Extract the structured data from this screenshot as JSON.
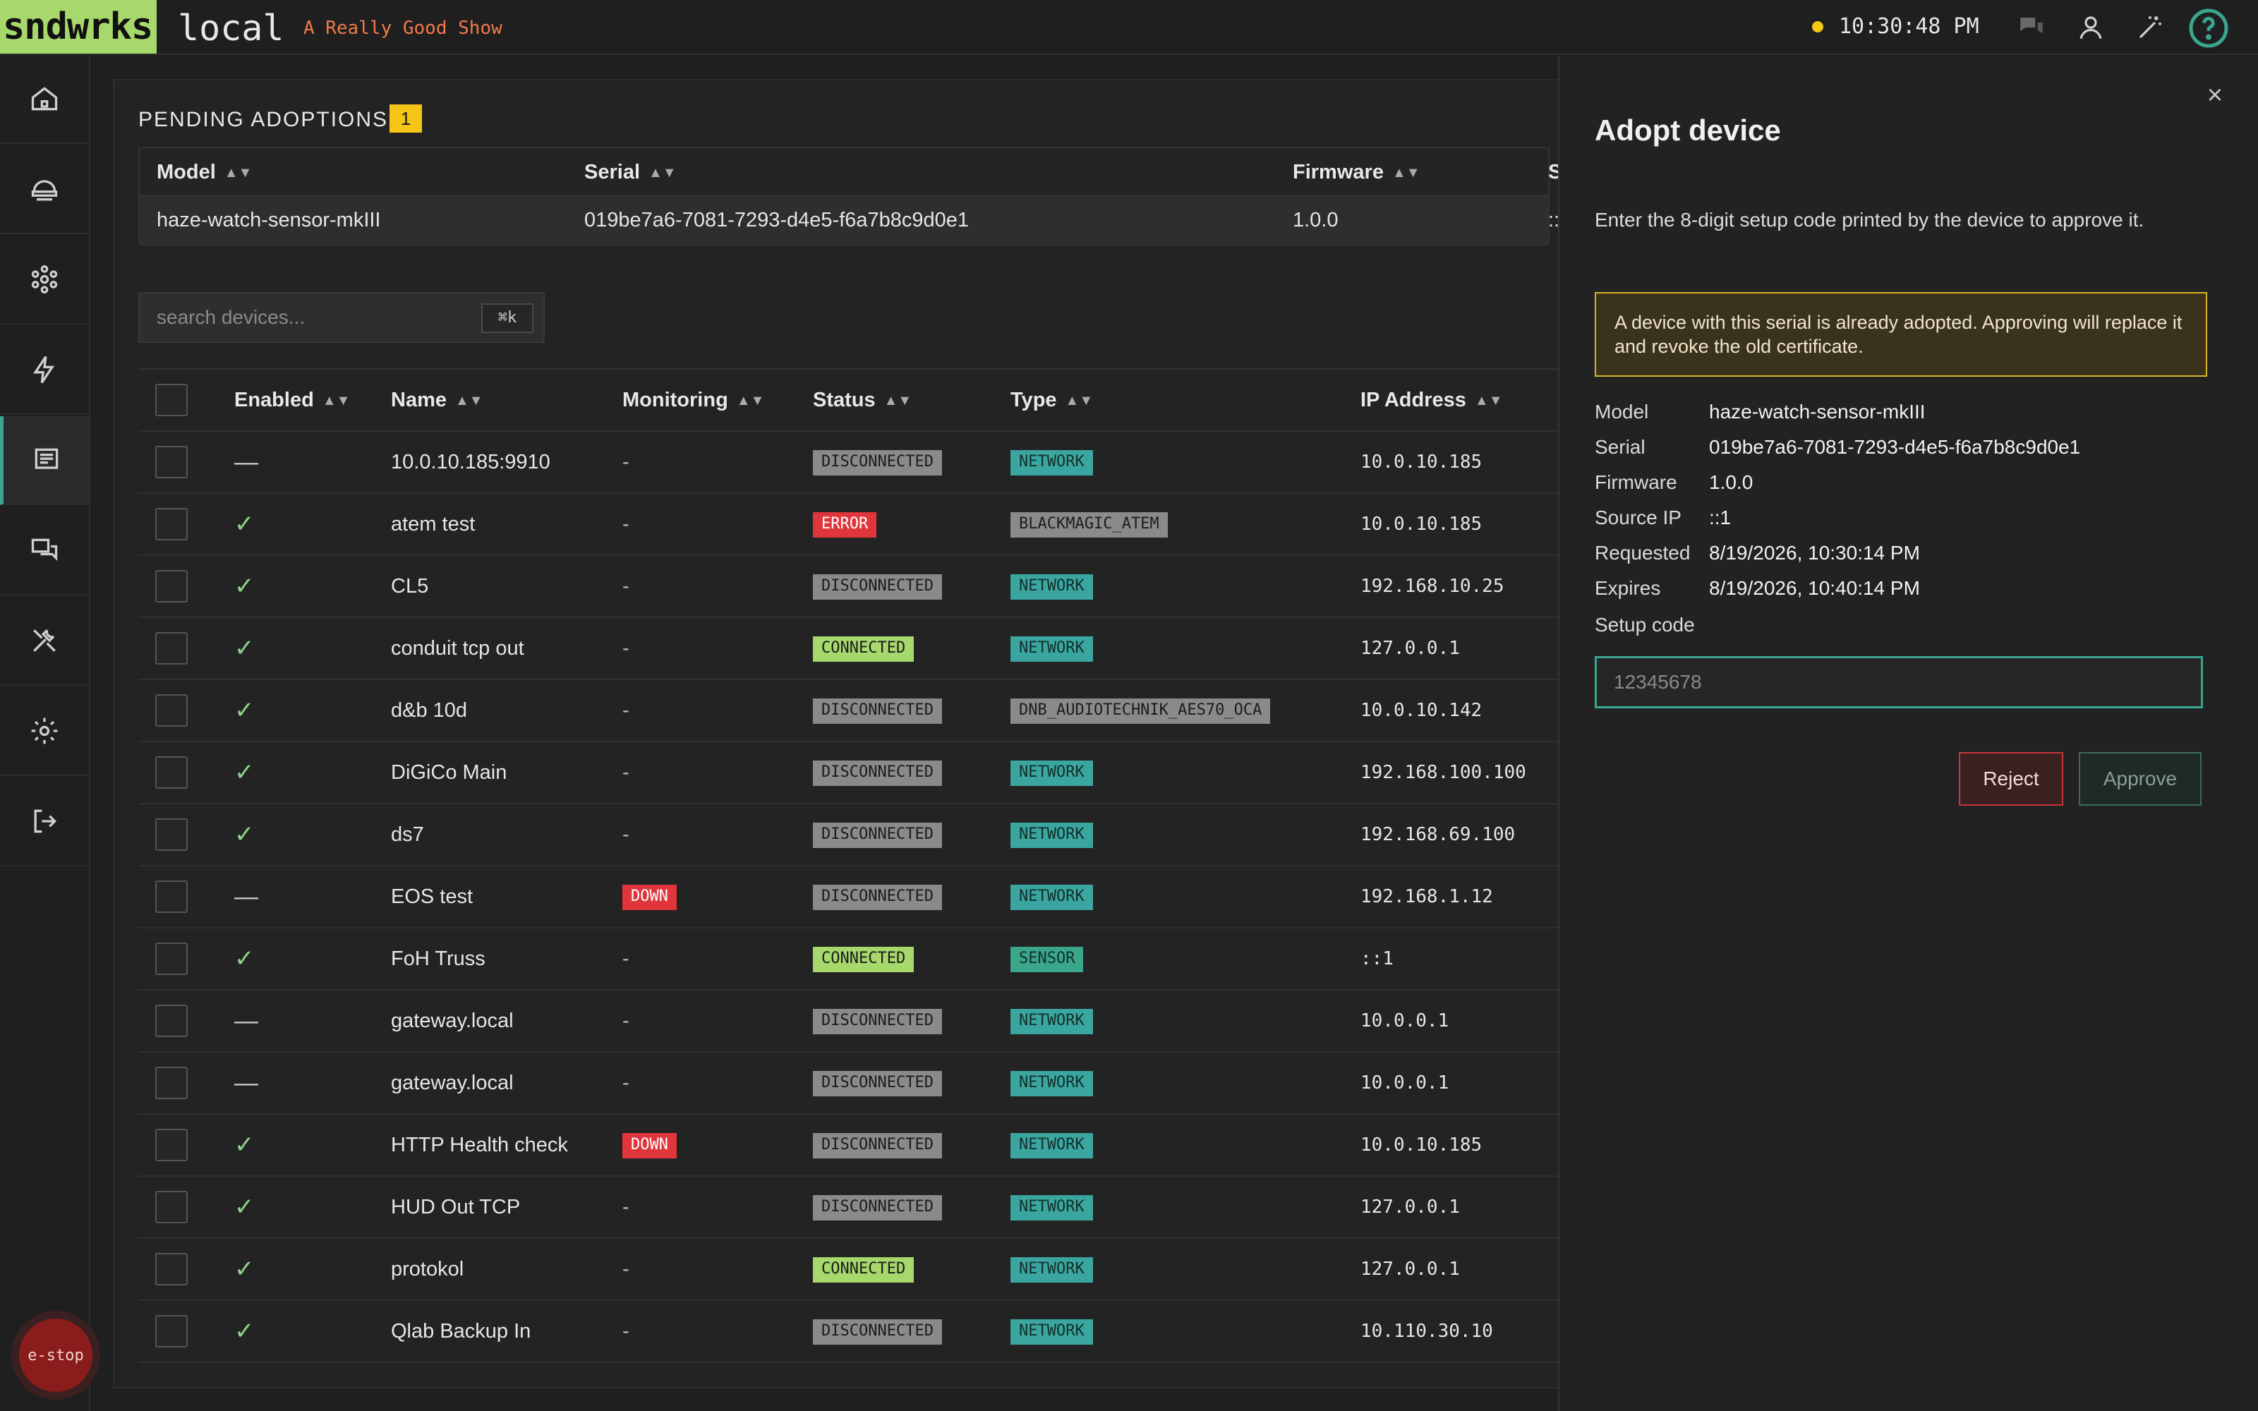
{
  "header": {
    "logo": "sndwrks",
    "site": "local",
    "show": "A Really Good Show",
    "clock": "10:30:48 PM",
    "status_color": "#f5c518"
  },
  "top_icons": [
    "chat-icon",
    "user-icon",
    "magic-wand-icon",
    "help-icon"
  ],
  "sidebar": {
    "items": [
      {
        "name": "home-icon"
      },
      {
        "name": "network-icon"
      },
      {
        "name": "nodes-icon"
      },
      {
        "name": "bolt-icon"
      },
      {
        "name": "devices-icon",
        "active": true
      },
      {
        "name": "messages-icon"
      },
      {
        "name": "tools-icon"
      },
      {
        "name": "settings-icon"
      },
      {
        "name": "logout-icon"
      }
    ],
    "estop": "e-stop"
  },
  "pending": {
    "title": "PENDING ADOPTIONS",
    "count": "1",
    "columns": [
      "Model",
      "Serial",
      "Firmware",
      "S"
    ],
    "row": {
      "model": "haze-watch-sensor-mkIII",
      "serial": "019be7a6-7081-7293-d4e5-f6a7b8c9d0e1",
      "firmware": "1.0.0",
      "source": "::"
    }
  },
  "search": {
    "placeholder": "search devices...",
    "shortcut": "⌘k"
  },
  "devices": {
    "columns": [
      "Enabled",
      "Name",
      "Monitoring",
      "Status",
      "Type",
      "IP Address"
    ],
    "rows": [
      {
        "enabled": "—",
        "name": "10.0.10.185:9910",
        "monitoring": "-",
        "status": "DISCONNECTED",
        "type": "NETWORK",
        "ip": "10.0.10.185"
      },
      {
        "enabled": "✓",
        "name": "atem test",
        "monitoring": "-",
        "status": "ERROR",
        "type": "BLACKMAGIC_ATEM",
        "ip": "10.0.10.185"
      },
      {
        "enabled": "✓",
        "name": "CL5",
        "monitoring": "-",
        "status": "DISCONNECTED",
        "type": "NETWORK",
        "ip": "192.168.10.25"
      },
      {
        "enabled": "✓",
        "name": "conduit tcp out",
        "monitoring": "-",
        "status": "CONNECTED",
        "type": "NETWORK",
        "ip": "127.0.0.1"
      },
      {
        "enabled": "✓",
        "name": "d&b 10d",
        "monitoring": "-",
        "status": "DISCONNECTED",
        "type": "DNB_AUDIOTECHNIK_AES70_OCA",
        "ip": "10.0.10.142"
      },
      {
        "enabled": "✓",
        "name": "DiGiCo Main",
        "monitoring": "-",
        "status": "DISCONNECTED",
        "type": "NETWORK",
        "ip": "192.168.100.100"
      },
      {
        "enabled": "✓",
        "name": "ds7",
        "monitoring": "-",
        "status": "DISCONNECTED",
        "type": "NETWORK",
        "ip": "192.168.69.100"
      },
      {
        "enabled": "—",
        "name": "EOS test",
        "monitoring": "DOWN",
        "status": "DISCONNECTED",
        "type": "NETWORK",
        "ip": "192.168.1.12"
      },
      {
        "enabled": "✓",
        "name": "FoH Truss",
        "monitoring": "-",
        "status": "CONNECTED",
        "type": "SENSOR",
        "ip": "::1"
      },
      {
        "enabled": "—",
        "name": "gateway.local",
        "monitoring": "-",
        "status": "DISCONNECTED",
        "type": "NETWORK",
        "ip": "10.0.0.1"
      },
      {
        "enabled": "—",
        "name": "gateway.local",
        "monitoring": "-",
        "status": "DISCONNECTED",
        "type": "NETWORK",
        "ip": "10.0.0.1"
      },
      {
        "enabled": "✓",
        "name": "HTTP Health check",
        "monitoring": "DOWN",
        "status": "DISCONNECTED",
        "type": "NETWORK",
        "ip": "10.0.10.185"
      },
      {
        "enabled": "✓",
        "name": "HUD Out TCP",
        "monitoring": "-",
        "status": "DISCONNECTED",
        "type": "NETWORK",
        "ip": "127.0.0.1"
      },
      {
        "enabled": "✓",
        "name": "protokol",
        "monitoring": "-",
        "status": "CONNECTED",
        "type": "NETWORK",
        "ip": "127.0.0.1"
      },
      {
        "enabled": "✓",
        "name": "Qlab Backup In",
        "monitoring": "-",
        "status": "DISCONNECTED",
        "type": "NETWORK",
        "ip": "10.110.30.10"
      }
    ]
  },
  "adopt": {
    "title": "Adopt device",
    "close": "×",
    "description": "Enter the 8-digit setup code printed by the device to approve it.",
    "warning": "A device with this serial is already adopted. Approving will replace it and revoke the old certificate.",
    "fields": [
      {
        "label": "Model",
        "value": "haze-watch-sensor-mkIII"
      },
      {
        "label": "Serial",
        "value": "019be7a6-7081-7293-d4e5-f6a7b8c9d0e1"
      },
      {
        "label": "Firmware",
        "value": "1.0.0"
      },
      {
        "label": "Source IP",
        "value": "::1"
      },
      {
        "label": "Requested",
        "value": "8/19/2026, 10:30:14 PM"
      },
      {
        "label": "Expires",
        "value": "8/19/2026, 10:40:14 PM"
      }
    ],
    "setup_label": "Setup code",
    "setup_placeholder": "12345678",
    "reject": "Reject",
    "approve": "Approve"
  }
}
